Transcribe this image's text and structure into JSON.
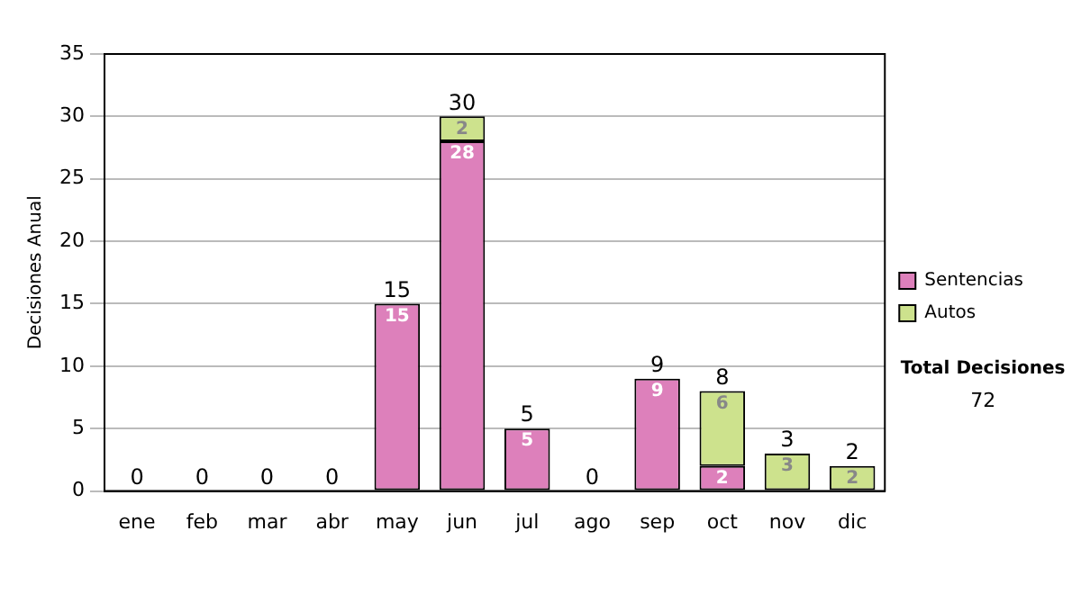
{
  "chart_data": {
    "type": "bar",
    "stacked": true,
    "ylabel": "Decisiones Anual",
    "categories": [
      "ene",
      "feb",
      "mar",
      "abr",
      "may",
      "jun",
      "jul",
      "ago",
      "sep",
      "oct",
      "nov",
      "dic"
    ],
    "series": [
      {
        "name": "Sentencias",
        "color": "#dd80bb",
        "values": [
          0,
          0,
          0,
          0,
          15,
          28,
          5,
          0,
          9,
          2,
          0,
          0
        ],
        "value_labels": [
          null,
          null,
          null,
          null,
          "15",
          "28",
          "5",
          null,
          "9",
          "2",
          null,
          null
        ]
      },
      {
        "name": "Autos",
        "color": "#cde28d",
        "values": [
          0,
          0,
          0,
          0,
          0,
          2,
          0,
          0,
          0,
          6,
          3,
          2
        ],
        "value_labels": [
          null,
          null,
          null,
          null,
          null,
          "2",
          null,
          null,
          null,
          "6",
          "3",
          "2"
        ]
      }
    ],
    "totals": [
      "0",
      "0",
      "0",
      "0",
      "15",
      "30",
      "5",
      "0",
      "9",
      "8",
      "3",
      "2"
    ],
    "ylim": [
      0,
      35
    ],
    "yticks": [
      0,
      5,
      10,
      15,
      20,
      25,
      30,
      35
    ],
    "grid": "y",
    "legend": "right",
    "annotations": [
      "Total Decisiones",
      "72"
    ]
  }
}
